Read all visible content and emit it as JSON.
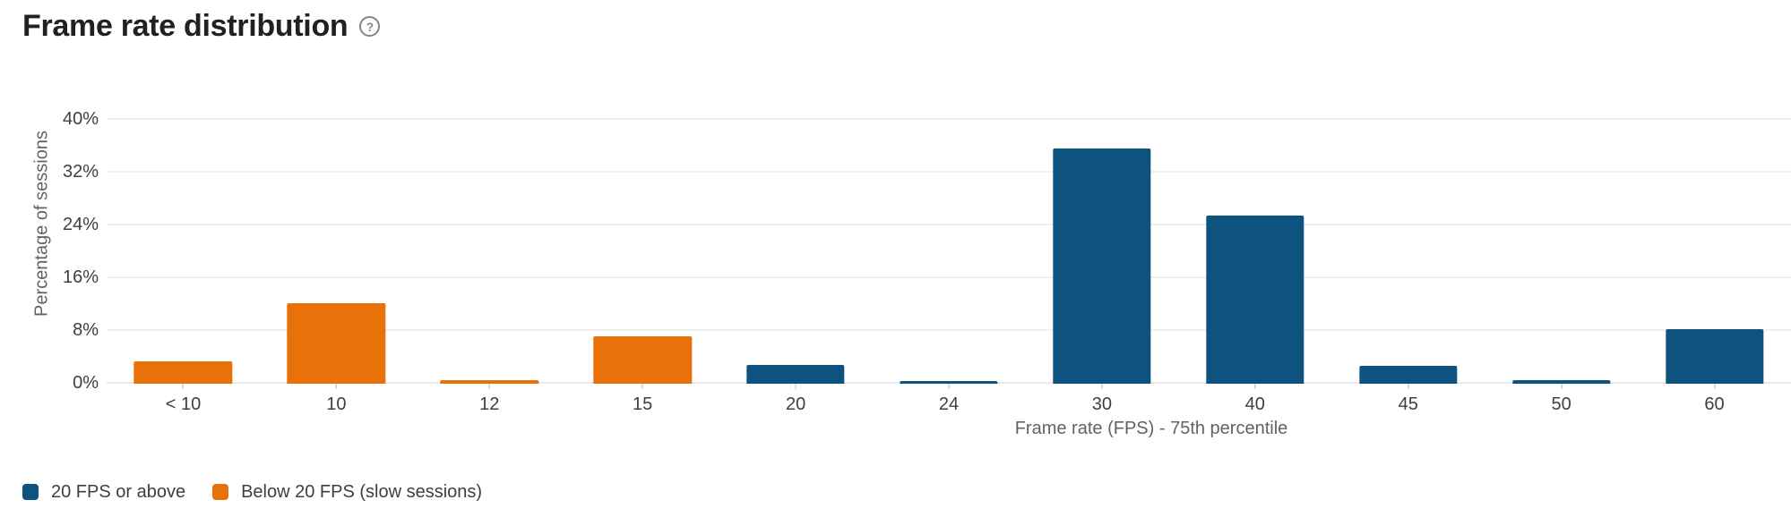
{
  "header": {
    "title": "Frame rate distribution",
    "help_icon_glyph": "?"
  },
  "chart_data": {
    "type": "bar",
    "title": "Frame rate distribution",
    "categories": [
      "< 10",
      "10",
      "12",
      "15",
      "20",
      "24",
      "30",
      "40",
      "45",
      "50",
      "60"
    ],
    "values": [
      3.4,
      12.2,
      0.5,
      7.2,
      2.8,
      0.4,
      35.7,
      25.5,
      2.7,
      0.5,
      8.3
    ],
    "point_series": [
      "below",
      "below",
      "below",
      "below",
      "above",
      "above",
      "above",
      "above",
      "above",
      "above",
      "above"
    ],
    "series": [
      {
        "id": "above",
        "name": "20 FPS or above",
        "color": "#0e537f"
      },
      {
        "id": "below",
        "name": "Below 20 FPS (slow sessions)",
        "color": "#e8710a"
      }
    ],
    "xlabel": "Frame rate (FPS) - 75th percentile",
    "ylabel": "Percentage of sessions",
    "ylim": [
      0,
      40
    ],
    "ytick_step": 8,
    "ytick_labels": [
      "0%",
      "8%",
      "16%",
      "24%",
      "32%",
      "40%"
    ],
    "grid": true,
    "legend_position": "bottom-left",
    "background": "#ffffff"
  }
}
